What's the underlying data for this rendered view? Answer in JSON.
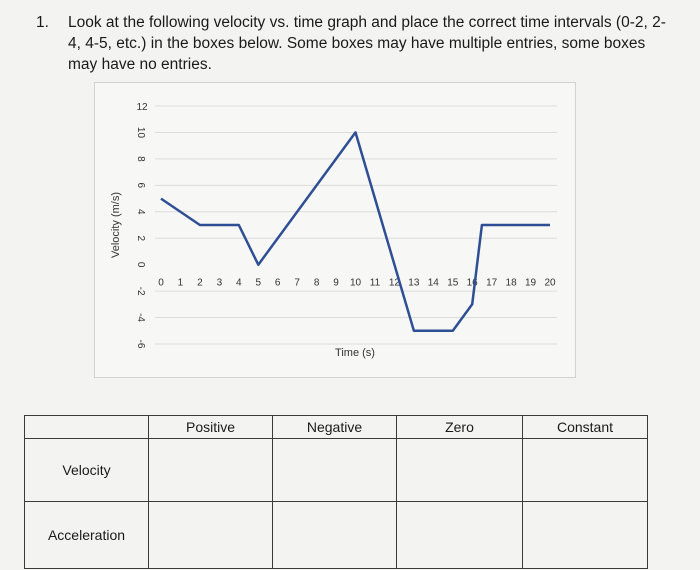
{
  "question": {
    "number": "1.",
    "text": "Look at the following velocity vs. time graph and place the correct time intervals (0-2, 2-4, 4-5, etc.) in the boxes below. Some boxes may have multiple entries, some boxes may have no entries."
  },
  "chart_data": {
    "type": "line",
    "xlabel": "Time (s)",
    "ylabel": "Velocity (m/s)",
    "xlim": [
      0,
      20
    ],
    "ylim": [
      -6,
      12
    ],
    "x_ticks": [
      "0",
      "1",
      "2",
      "3",
      "4",
      "5",
      "6",
      "7",
      "8",
      "9",
      "10",
      "11",
      "12",
      "13",
      "14",
      "15",
      "16",
      "17",
      "18",
      "19",
      "20"
    ],
    "y_ticks": [
      "12",
      "10",
      "8",
      "6",
      "4",
      "2",
      "0",
      "-2",
      "-4",
      "-6"
    ],
    "grid": true,
    "series": [
      {
        "x": [
          0,
          2,
          4,
          5,
          10,
          13,
          15,
          16,
          16.5,
          20
        ],
        "y": [
          5,
          3,
          3,
          0,
          10,
          -5,
          -5,
          -3,
          3,
          3
        ],
        "color": "#2f4f94"
      }
    ]
  },
  "table": {
    "columns": [
      "",
      "Positive",
      "Negative",
      "Zero",
      "Constant"
    ],
    "rows": [
      "Velocity",
      "Acceleration"
    ]
  }
}
